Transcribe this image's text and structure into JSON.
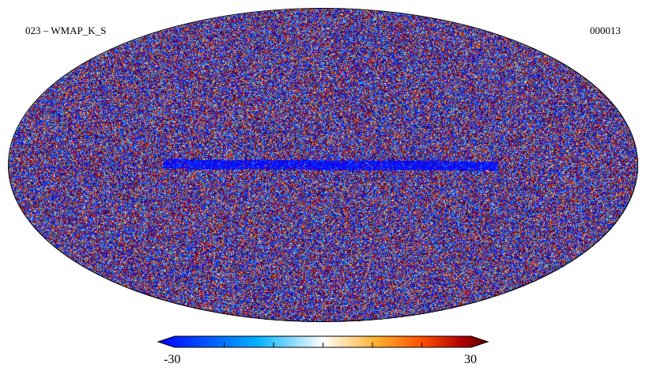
{
  "map": {
    "title": "023 – WMAP_K_S",
    "id": "000013",
    "projection": "mollweide",
    "description_colors": {
      "palette": [
        "#1a00ff",
        "#0050ff",
        "#00a8ff",
        "#d8f4ff",
        "#ffd58a",
        "#ff9a1a",
        "#ff3a00",
        "#b00000",
        "#5a0000"
      ]
    }
  },
  "colorbar": {
    "min_label": "-30",
    "max_label": "30",
    "min": -30,
    "max": 30,
    "ticks": [
      -30,
      -20,
      -10,
      0,
      10,
      20,
      30
    ],
    "colors": [
      "#0000ff",
      "#0060ff",
      "#00c0ff",
      "#ffffff",
      "#ffc040",
      "#ff6000",
      "#c00000",
      "#600000"
    ]
  }
}
